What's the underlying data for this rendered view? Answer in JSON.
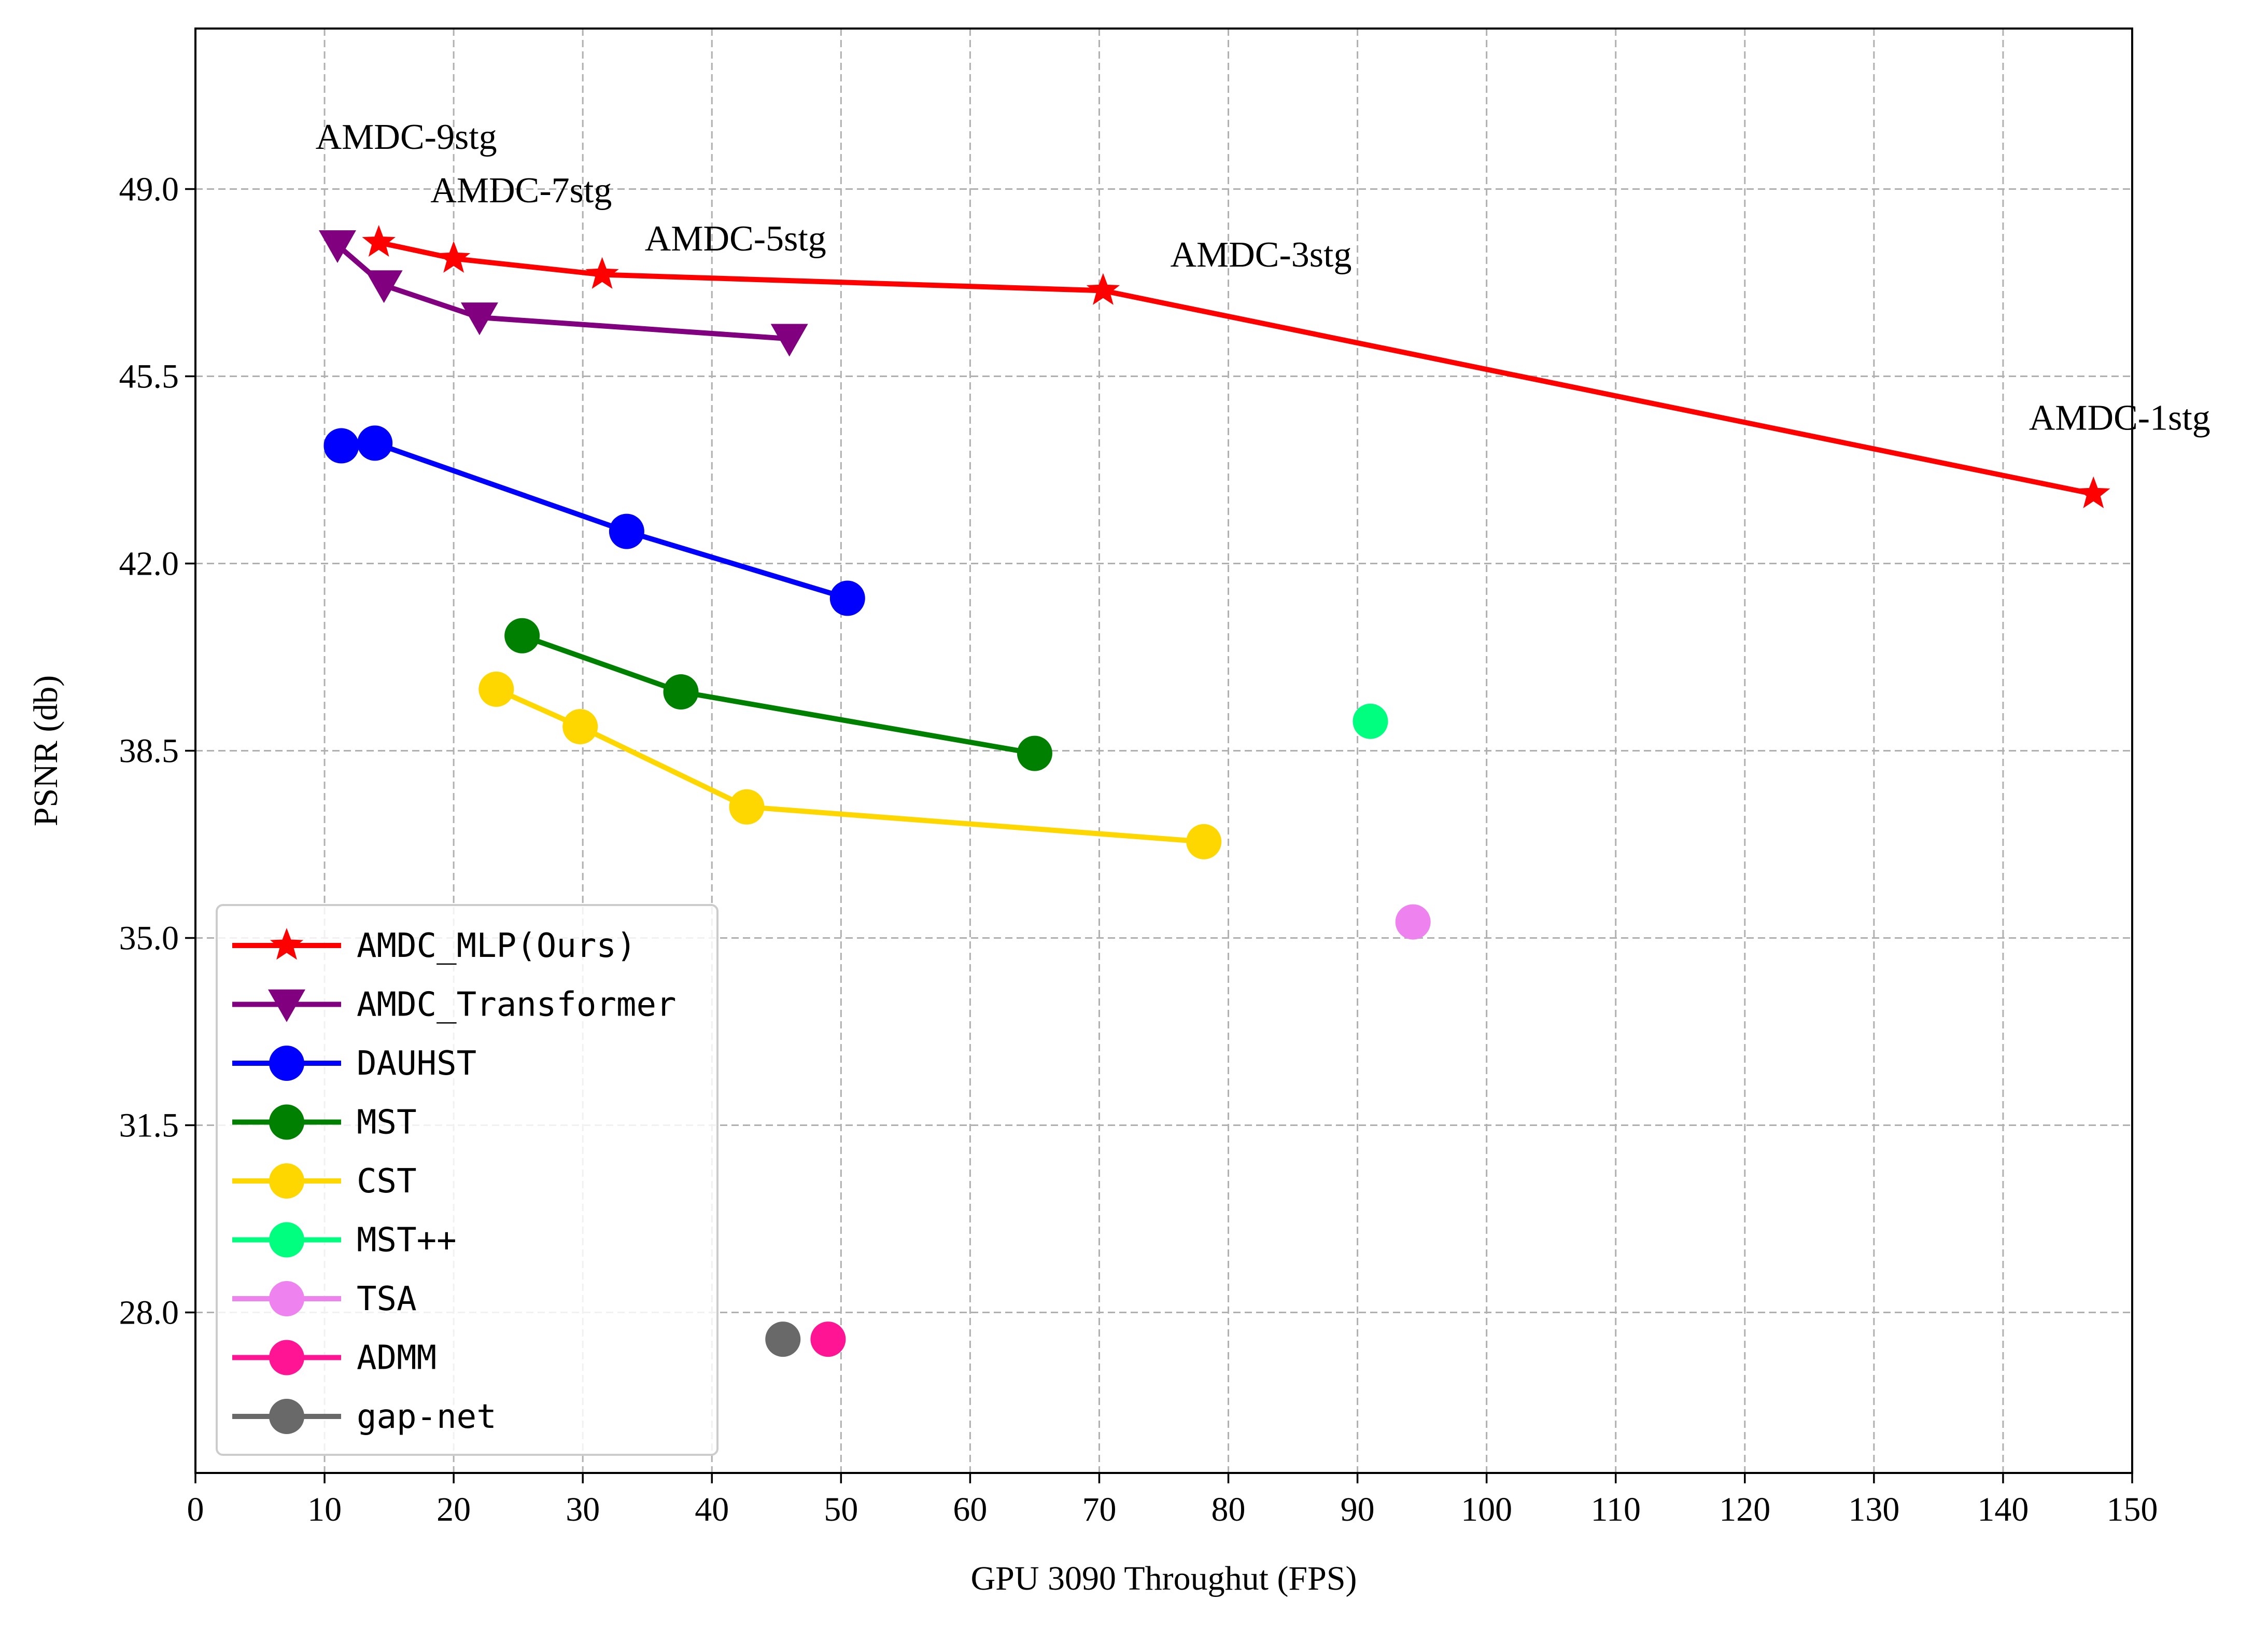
{
  "chart_data": {
    "type": "line",
    "title": "",
    "xlabel": "GPU 3090 Throughut (FPS)",
    "ylabel": "PSNR (db)",
    "xlim": [
      0,
      150
    ],
    "ylim": [
      25,
      52
    ],
    "xticks": [
      0,
      10,
      20,
      30,
      40,
      50,
      60,
      70,
      80,
      90,
      100,
      110,
      120,
      130,
      140,
      150
    ],
    "yticks": [
      28.0,
      31.5,
      35.0,
      38.5,
      42.0,
      45.5,
      49.0
    ],
    "ytick_labels": [
      "28.0",
      "31.5",
      "35.0",
      "38.5",
      "42.0",
      "45.5",
      "49.0"
    ],
    "grid": true,
    "legend_position": "lower-left",
    "series": [
      {
        "name": "AMDC_MLP(Ours)",
        "color": "#ff0000",
        "marker": "star",
        "x": [
          14.2,
          20.0,
          31.5,
          70.3,
          147.0
        ],
        "y": [
          48.0,
          47.7,
          47.4,
          47.1,
          43.3
        ]
      },
      {
        "name": "AMDC_Transformer",
        "color": "#800080",
        "marker": "triangle-down",
        "x": [
          11.0,
          14.6,
          22.0,
          46.0
        ],
        "y": [
          47.95,
          47.2,
          46.6,
          46.2
        ]
      },
      {
        "name": "DAUHST",
        "color": "#0000ff",
        "marker": "circle",
        "x": [
          11.3,
          13.9,
          33.4,
          50.5
        ],
        "y": [
          44.2,
          44.25,
          42.6,
          41.35
        ]
      },
      {
        "name": "MST",
        "color": "#008000",
        "marker": "circle",
        "x": [
          25.3,
          37.6,
          65.0
        ],
        "y": [
          40.65,
          39.6,
          38.45
        ]
      },
      {
        "name": "CST",
        "color": "#ffd700",
        "marker": "circle",
        "x": [
          23.3,
          29.8,
          42.7,
          78.1
        ],
        "y": [
          39.65,
          38.95,
          37.45,
          36.8
        ]
      },
      {
        "name": "MST++",
        "color": "#00ff7f",
        "marker": "circle",
        "x": [
          91.0
        ],
        "y": [
          39.05
        ]
      },
      {
        "name": "TSA",
        "color": "#ee82ee",
        "marker": "circle",
        "x": [
          94.3
        ],
        "y": [
          35.3
        ]
      },
      {
        "name": "ADMM",
        "color": "#ff1493",
        "marker": "circle",
        "x": [
          49.0
        ],
        "y": [
          27.5
        ]
      },
      {
        "name": "gap-net",
        "color": "#696969",
        "marker": "circle",
        "x": [
          45.5
        ],
        "y": [
          27.5
        ]
      }
    ],
    "annotations": [
      {
        "text": "AMDC-9stg",
        "x": 9.3,
        "y": 49.75
      },
      {
        "text": "AMDC-7stg",
        "x": 18.2,
        "y": 48.75
      },
      {
        "text": "AMDC-5stg",
        "x": 34.8,
        "y": 47.85
      },
      {
        "text": "AMDC-3stg",
        "x": 75.5,
        "y": 47.55
      },
      {
        "text": "AMDC-1stg",
        "x": 142.0,
        "y": 44.5
      }
    ]
  }
}
